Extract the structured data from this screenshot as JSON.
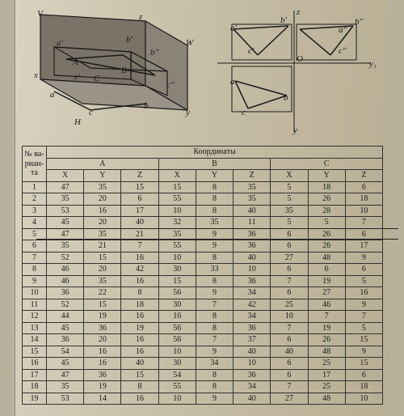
{
  "caption": "Координаты",
  "rowheader": "№ ва-\nриан-\nта",
  "groups": [
    "A",
    "B",
    "C"
  ],
  "subcols": [
    "X",
    "Y",
    "Z"
  ],
  "leftLabels": [
    "V",
    "z",
    "b'",
    "a'",
    "b''",
    "W",
    "A",
    "x",
    "c'",
    "C",
    "B",
    "c''",
    "a",
    "c",
    "b",
    "H",
    "y"
  ],
  "rightLabels": [
    "z",
    "b'",
    "b''",
    "a'",
    "a''",
    "c'",
    "O",
    "c''",
    "y₁",
    "a",
    "b",
    "c",
    "y"
  ],
  "colors": {
    "line": "#1a1a1a",
    "shade": "#6b6558"
  },
  "rows": [
    {
      "n": "1",
      "a": [
        47,
        35,
        15
      ],
      "b": [
        15,
        8,
        35
      ],
      "c": [
        5,
        18,
        6
      ]
    },
    {
      "n": "2",
      "a": [
        35,
        20,
        6
      ],
      "b": [
        55,
        8,
        35
      ],
      "c": [
        5,
        26,
        18
      ]
    },
    {
      "n": "3",
      "a": [
        53,
        16,
        17
      ],
      "b": [
        10,
        8,
        40
      ],
      "c": [
        35,
        28,
        10
      ]
    },
    {
      "n": "4",
      "a": [
        45,
        20,
        40
      ],
      "b": [
        32,
        35,
        11
      ],
      "c": [
        5,
        5,
        7
      ]
    },
    {
      "n": "5",
      "a": [
        47,
        35,
        21
      ],
      "b": [
        35,
        9,
        36
      ],
      "c": [
        6,
        26,
        6
      ]
    },
    {
      "n": "6",
      "a": [
        35,
        21,
        7
      ],
      "b": [
        55,
        9,
        36
      ],
      "c": [
        6,
        26,
        17
      ]
    },
    {
      "n": "7",
      "a": [
        52,
        15,
        16
      ],
      "b": [
        10,
        8,
        40
      ],
      "c": [
        27,
        48,
        9
      ]
    },
    {
      "n": "8",
      "a": [
        46,
        20,
        42
      ],
      "b": [
        30,
        33,
        10
      ],
      "c": [
        6,
        6,
        6
      ]
    },
    {
      "n": "9",
      "a": [
        46,
        35,
        16
      ],
      "b": [
        15,
        8,
        36
      ],
      "c": [
        7,
        19,
        5
      ]
    },
    {
      "n": "10",
      "a": [
        36,
        22,
        8
      ],
      "b": [
        56,
        9,
        34
      ],
      "c": [
        6,
        27,
        16
      ]
    },
    {
      "n": "11",
      "a": [
        52,
        15,
        18
      ],
      "b": [
        30,
        7,
        42
      ],
      "c": [
        25,
        46,
        9
      ]
    },
    {
      "n": "12",
      "a": [
        44,
        19,
        16
      ],
      "b": [
        16,
        8,
        34
      ],
      "c": [
        10,
        7,
        7
      ]
    },
    {
      "n": "13",
      "a": [
        45,
        36,
        19
      ],
      "b": [
        56,
        8,
        36
      ],
      "c": [
        7,
        19,
        5
      ]
    },
    {
      "n": "14",
      "a": [
        36,
        20,
        16
      ],
      "b": [
        56,
        7,
        37
      ],
      "c": [
        6,
        26,
        15
      ]
    },
    {
      "n": "15",
      "a": [
        54,
        16,
        16
      ],
      "b": [
        10,
        9,
        40
      ],
      "c": [
        40,
        48,
        9
      ]
    },
    {
      "n": "16",
      "a": [
        45,
        16,
        40
      ],
      "b": [
        30,
        34,
        10
      ],
      "c": [
        6,
        25,
        15
      ]
    },
    {
      "n": "17",
      "a": [
        47,
        36,
        15
      ],
      "b": [
        54,
        8,
        36
      ],
      "c": [
        6,
        17,
        6
      ]
    },
    {
      "n": "18",
      "a": [
        35,
        19,
        8
      ],
      "b": [
        55,
        8,
        34
      ],
      "c": [
        7,
        25,
        18
      ]
    },
    {
      "n": "19",
      "a": [
        53,
        14,
        16
      ],
      "b": [
        10,
        9,
        40
      ],
      "c": [
        27,
        48,
        10
      ]
    }
  ]
}
